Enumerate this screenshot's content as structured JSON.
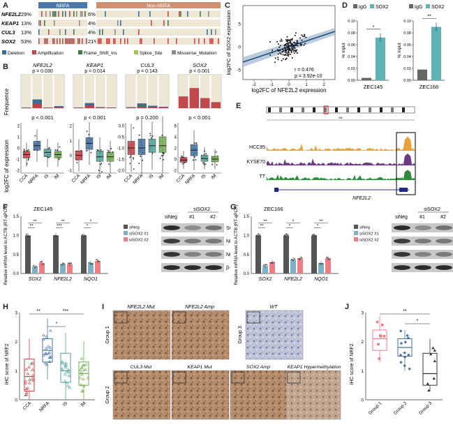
{
  "colors": {
    "deletion": "#3c6e95",
    "amplification": "#c0494c",
    "frameshift": "#3c7a4a",
    "splice": "#a4c35a",
    "missense": "#8c8c8c",
    "nrfa_header": "#4a79aa",
    "non_nrfa_header": "#d09070",
    "ccA": "#c44046",
    "nrfa": "#4372a6",
    "is": "#53a39a",
    "im": "#6fae4d",
    "bg_track": "#efe7d6",
    "sox2_bar": "#5db3b5",
    "igg_bar": "#666666",
    "sineg": "#555555",
    "sisox2_1": "#7fb1c4",
    "sisox2_2": "#ee7d85",
    "hcc95": "#e7a23a",
    "kyse70": "#6b3b86",
    "tt": "#2e8b3d"
  },
  "panelA": {
    "label": "A",
    "nrfa": "NRFA",
    "non_nrfa": "Non-NRFA",
    "genes": [
      {
        "name": "NFE2L2",
        "pct_nrfa": "29%",
        "pct_non": "6%"
      },
      {
        "name": "KEAP1",
        "pct_nrfa": "13%",
        "pct_non": "4%"
      },
      {
        "name": "CUL3",
        "pct_nrfa": "13%",
        "pct_non": "4%"
      },
      {
        "name": "SOX2",
        "pct_nrfa": "53%",
        "pct_non": "21%"
      }
    ],
    "legend": [
      "Deletion",
      "Amplification",
      "Frame_Shift_Ins",
      "Splice_Site",
      "Missense_Mutation"
    ]
  },
  "panelB": {
    "label": "B",
    "ylabel_top": "Frequence",
    "ylabel_bottom": "log2FC of expression",
    "groups": [
      "CCA",
      "NRFA",
      "IS",
      "IM"
    ],
    "subplots": [
      {
        "gene": "NFE2L2",
        "p_top": "p = 0.030",
        "p_bottom": "p < 0.001",
        "freq": [
          0.02,
          0.26,
          0.02,
          0.06
        ],
        "yticks": [
          "2",
          "1",
          "0",
          "-1",
          "-2"
        ],
        "box": [
          {
            "q1": -0.9,
            "med": -0.6,
            "q3": -0.3
          },
          {
            "q1": -0.2,
            "med": 0.2,
            "q3": 0.6
          },
          {
            "q1": -0.8,
            "med": -0.4,
            "q3": -0.1
          },
          {
            "q1": -0.9,
            "med": -0.6,
            "q3": -0.3
          }
        ]
      },
      {
        "gene": "KEAP1",
        "p_top": "p = 0.014",
        "p_bottom": "p < 0.001",
        "freq": [
          0.02,
          0.15,
          0.03,
          0.02
        ],
        "yticks": [
          "2",
          "1",
          "0",
          "-1"
        ],
        "box": [
          {
            "q1": -0.3,
            "med": 0.0,
            "q3": 0.3
          },
          {
            "q1": 0.4,
            "med": 0.8,
            "q3": 1.2
          },
          {
            "q1": -0.4,
            "med": -0.1,
            "q3": 0.3
          },
          {
            "q1": -0.4,
            "med": -0.1,
            "q3": 0.2
          }
        ]
      },
      {
        "gene": "CUL3",
        "p_top": "p = 0.143",
        "p_bottom": "p = 0.200",
        "freq": [
          0.03,
          0.14,
          0.07,
          0.04
        ],
        "yticks": [
          "0.0",
          "-0.5",
          "-1.0",
          "-1.5",
          "-2.0"
        ],
        "box": [
          {
            "q1": -1.3,
            "med": -1.0,
            "q3": -0.7
          },
          {
            "q1": -1.3,
            "med": -1.0,
            "q3": -0.6
          },
          {
            "q1": -1.2,
            "med": -0.9,
            "q3": -0.6
          },
          {
            "q1": -1.2,
            "med": -0.9,
            "q3": -0.5
          }
        ]
      },
      {
        "gene": "SOX2",
        "p_top": "p < 0.001",
        "p_bottom": "p < 0.001",
        "freq": [
          0.35,
          0.6,
          0.3,
          0.18
        ],
        "yticks": [
          "6",
          "4",
          "2",
          "0",
          "-2"
        ],
        "box": [
          {
            "q1": -0.6,
            "med": -0.2,
            "q3": 0.3
          },
          {
            "q1": 0.6,
            "med": 1.6,
            "q3": 2.6
          },
          {
            "q1": -0.4,
            "med": 0.1,
            "q3": 0.7
          },
          {
            "q1": -0.5,
            "med": 0.0,
            "q3": 0.5
          }
        ]
      }
    ]
  },
  "panelC": {
    "label": "C",
    "xlabel": "log2FC of NFE2L2 expression",
    "ylabel": "log2FC of SOX2 expression",
    "r": "r = 0.476",
    "p": "p = 3.92e-10",
    "xticks": [
      "-2",
      "-1",
      "0",
      "1",
      "2"
    ],
    "yticks": [
      "5",
      "0",
      "-5"
    ]
  },
  "panelD": {
    "label": "D",
    "ylabel": "% Input",
    "legend": [
      "IgG",
      "SOX2"
    ],
    "charts": [
      {
        "cell": "ZEC145",
        "yticks": [
          "0.10",
          "0.08",
          "0.06",
          "0.04",
          "0.02",
          "0.00"
        ],
        "ymax": 0.1,
        "igg": 0.004,
        "sox2": 0.072,
        "sig": "*"
      },
      {
        "cell": "ZEC166",
        "yticks": [
          "0.10",
          "0.08",
          "0.06",
          "0.04",
          "0.02",
          "0.00"
        ],
        "ymax": 0.1,
        "igg": 0.018,
        "sox2": 0.09,
        "sig": "**"
      }
    ]
  },
  "panelE": {
    "label": "E",
    "tracks": [
      "HCC95",
      "KYSE70",
      "TT"
    ],
    "gene": "NFE2L2",
    "scale": "Mb"
  },
  "panelF": {
    "label": "F",
    "cell": "ZEC145",
    "ylabel": "Relative mRNA level to ACTB (RT-qPCR)",
    "yticks": [
      "1.5",
      "1.0",
      "0.5",
      "0.0"
    ],
    "genes": [
      "SOX2",
      "NFE2L2",
      "NQO1"
    ],
    "legend": [
      "siNeg",
      "siSOX2 #1",
      "siSOX2 #2"
    ],
    "values": [
      [
        1.0,
        0.18,
        0.28
      ],
      [
        1.0,
        0.25,
        0.25
      ],
      [
        1.0,
        0.28,
        0.33
      ]
    ],
    "sigs": [
      "**",
      "**",
      "***",
      "**",
      "*",
      "*"
    ],
    "blot": {
      "header": "siSOX2",
      "lanes": [
        "siNeg",
        "#1",
        "#2"
      ],
      "rows": [
        "SOX2",
        "NRF2",
        "NQO1",
        "β-actin"
      ]
    }
  },
  "panelG": {
    "label": "G",
    "cell": "ZEC166",
    "ylabel": "Relative mRNA level to ACTB (RT-qPCR)",
    "yticks": [
      "1.5",
      "1.0",
      "0.5",
      "0.0"
    ],
    "genes": [
      "SOX2",
      "NFE2L2",
      "NQO1"
    ],
    "legend": [
      "siNeg",
      "siSOX2 #1",
      "siSOX2 #2"
    ],
    "values": [
      [
        1.0,
        0.2,
        0.3
      ],
      [
        1.0,
        0.37,
        0.4
      ],
      [
        1.0,
        0.27,
        0.4
      ]
    ],
    "sigs": [
      "**",
      "**",
      "*",
      "*",
      "*",
      "**"
    ],
    "blot": {
      "header": "siSOX2",
      "lanes": [
        "siNeg",
        "#1",
        "#2"
      ],
      "rows": [
        "SOX2",
        "NRF2",
        "NQO1",
        "β-actin"
      ]
    }
  },
  "panelH": {
    "label": "H",
    "ylabel": "IHC score of NRF2",
    "groups": [
      "CCA",
      "NRFA",
      "IS",
      "IM"
    ],
    "yticks": [
      "3",
      "2",
      "1",
      "0"
    ],
    "sigs": [
      "**",
      "***",
      "*"
    ]
  },
  "panelI": {
    "label": "I",
    "row_labels": [
      "Group 1",
      "Group 2"
    ],
    "row3": "Group 3",
    "top": [
      "NFE2L2 Mut",
      "NFE2L2 Amp",
      "WT"
    ],
    "bottom": [
      "CUL3 Mut",
      "KEAP1 Mut",
      "SOX2 Amp",
      "KEAP1 Hypermethylation"
    ]
  },
  "panelJ": {
    "label": "J",
    "ylabel": "IHC score of NRF2",
    "groups": [
      "Group 1",
      "Group 2",
      "Group 3"
    ],
    "yticks": [
      "3",
      "2",
      "1",
      "0"
    ],
    "sigs": [
      "**",
      "*"
    ]
  }
}
